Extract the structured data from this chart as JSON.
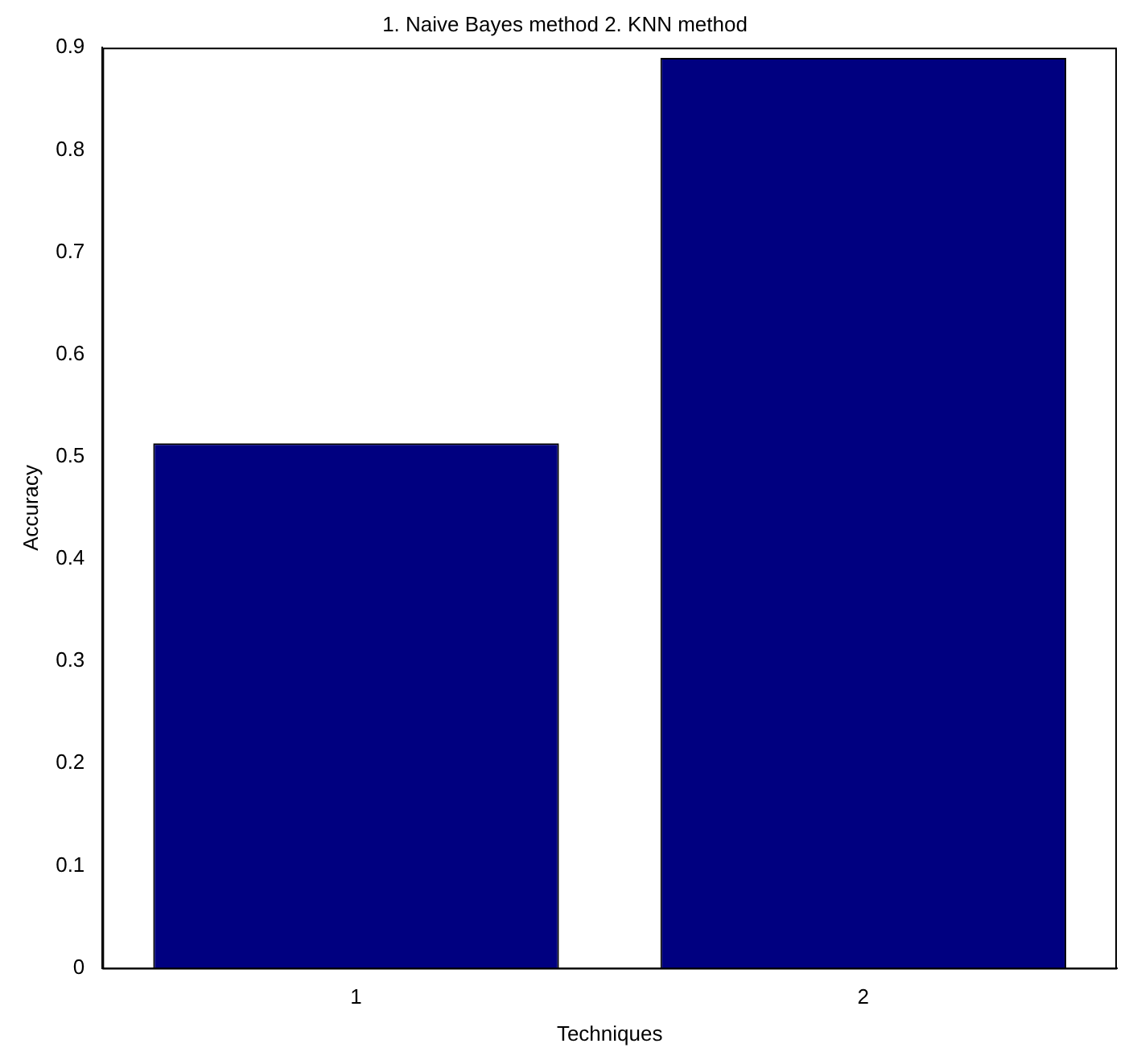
{
  "chart_data": {
    "type": "bar",
    "title": "1. Naive Bayes method 2. KNN method",
    "xlabel": "Techniques",
    "ylabel": "Accuracy",
    "categories": [
      "1",
      "2"
    ],
    "values": [
      0.513,
      0.89
    ],
    "color": "#000080",
    "ylim": [
      0,
      0.9
    ],
    "yticks": [
      0,
      0.1,
      0.2,
      0.3,
      0.4,
      0.5,
      0.6,
      0.7,
      0.8,
      0.9
    ],
    "grid": false,
    "legend": false
  }
}
